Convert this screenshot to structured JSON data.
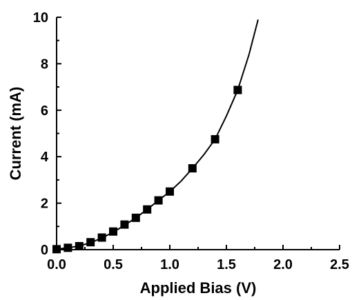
{
  "chart_data": {
    "type": "scatter",
    "xlabel": "Applied Bias (V)",
    "ylabel": "Current (mA)",
    "xlim": [
      0.0,
      2.5
    ],
    "ylim": [
      0,
      10
    ],
    "x_ticks": [
      "0.0",
      "0.5",
      "1.0",
      "1.5",
      "2.0",
      "2.5"
    ],
    "y_ticks": [
      "0",
      "2",
      "4",
      "6",
      "8",
      "10"
    ],
    "grid": false,
    "legend": "none",
    "series": [
      {
        "kind": "markers",
        "marker": "square",
        "color": "#000000",
        "x": [
          0.0,
          0.1,
          0.2,
          0.3,
          0.4,
          0.5,
          0.6,
          0.7,
          0.8,
          0.9,
          1.0,
          1.2,
          1.4,
          1.6
        ],
        "y": [
          0.02,
          0.08,
          0.15,
          0.32,
          0.52,
          0.78,
          1.08,
          1.37,
          1.73,
          2.12,
          2.5,
          3.5,
          4.75,
          6.87
        ]
      },
      {
        "kind": "line",
        "color": "#000000",
        "x": [
          0.0,
          0.1,
          0.2,
          0.3,
          0.4,
          0.5,
          0.6,
          0.7,
          0.8,
          0.9,
          1.0,
          1.1,
          1.2,
          1.3,
          1.4,
          1.5,
          1.6,
          1.7,
          1.78
        ],
        "y": [
          0.02,
          0.08,
          0.16,
          0.3,
          0.5,
          0.75,
          1.05,
          1.37,
          1.73,
          2.12,
          2.5,
          2.95,
          3.5,
          4.08,
          4.75,
          5.75,
          6.87,
          8.4,
          9.9
        ]
      }
    ]
  }
}
